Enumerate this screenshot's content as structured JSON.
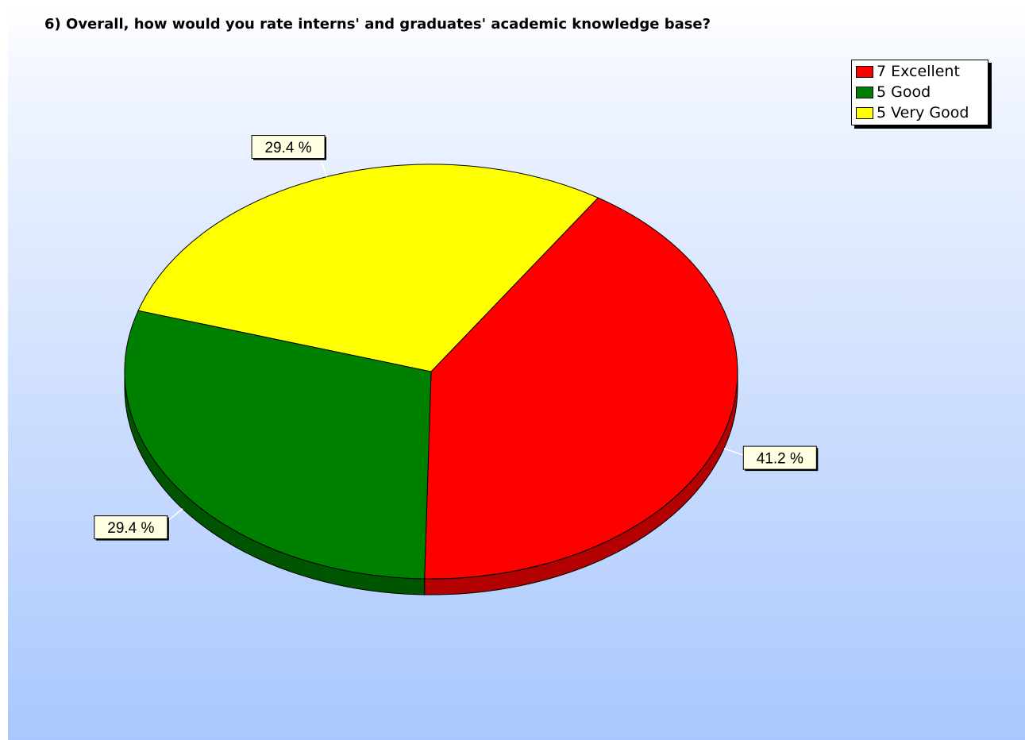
{
  "chart_data": {
    "type": "pie",
    "title": "6) Overall, how would you rate interns' and graduates' academic knowledge base?",
    "slices": [
      {
        "name": "7 Excellent",
        "count": 7,
        "percent": 41.2,
        "label": "41.2 %",
        "color": "#ff0000",
        "shade": "#b30000"
      },
      {
        "name": "5 Good",
        "count": 5,
        "percent": 29.4,
        "label": "29.4 %",
        "color": "#008000",
        "shade": "#005500"
      },
      {
        "name": "5 Very Good",
        "count": 5,
        "percent": 29.4,
        "label": "29.4 %",
        "color": "#ffff00",
        "shade": "#d2d22a"
      }
    ],
    "legend": {
      "position": "top-right",
      "items": [
        "7 Excellent",
        "5 Good",
        "5 Very Good"
      ]
    },
    "three_d": true
  },
  "colors": {
    "background_top": "#ffffff",
    "background_bottom": "#a9c7fd",
    "label_box": "#ffffe1"
  }
}
